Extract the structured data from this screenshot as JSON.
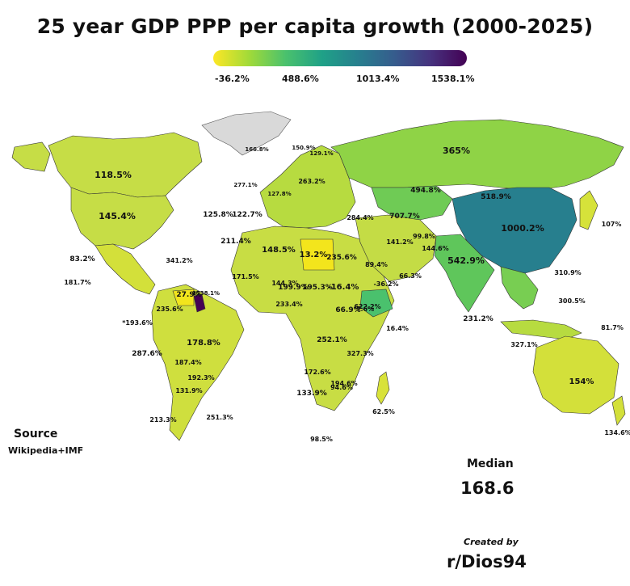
{
  "title": "25 year GDP PPP per capita growth (2000-2025)",
  "legend": {
    "ticks": [
      "-36.2%",
      "488.6%",
      "1013.4%",
      "1538.1%"
    ],
    "colors": [
      "#fde725",
      "#a0da39",
      "#4ac16d",
      "#1fa187",
      "#277f8e",
      "#365c8d",
      "#46327e",
      "#440154"
    ]
  },
  "source": {
    "label": "Source",
    "text": "Wikipedia+IMF"
  },
  "median": {
    "label": "Median",
    "value": "168.6"
  },
  "credit": {
    "label": "Created by",
    "name": "r/Dios94"
  },
  "map_labels": [
    "118.5%",
    "145.4%",
    "83.2%",
    "181.7%",
    "166.8%",
    "211.4%",
    "125.8%",
    "122.7%",
    "148.5%",
    "13.2%",
    "235.6%",
    "-16.4%",
    "-36.2%",
    "66.3%",
    "199.9%",
    "195.3%",
    "233.4%",
    "171.5%",
    "144.3%",
    "66.9%",
    "7.6%",
    "622.2%",
    "16.4%",
    "252.1%",
    "327.3%",
    "172.6%",
    "194.6%",
    "94.6%",
    "133.9%",
    "62.5%",
    "98.5%",
    "178.8%",
    "287.6%",
    "187.4%",
    "192.3%",
    "131.9%",
    "213.3%",
    "251.3%",
    "27.9%",
    "235.6%",
    "1538.1%",
    "*193.6%",
    "341.2%",
    "365%",
    "494.8%",
    "518.9%",
    "707.7%",
    "1000.2%",
    "542.9%",
    "231.2%",
    "310.9%",
    "300.5%",
    "327.1%",
    "81.7%",
    "154%",
    "134.6%",
    "107%",
    "284.4%",
    "141.2%",
    "99.8%",
    "144.6%",
    "89.4%",
    "263.2%",
    "127.8%",
    "277.1%",
    "129.1%",
    "150.9%"
  ]
}
